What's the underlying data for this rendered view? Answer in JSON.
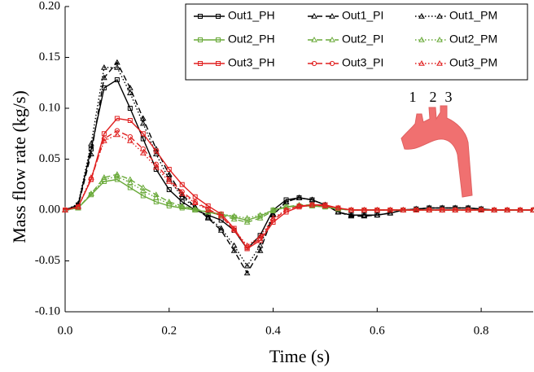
{
  "chart_data": {
    "type": "line",
    "xlabel": "Time (s)",
    "ylabel": "Mass flow rate (kg/s)",
    "annotations": [
      "1",
      "2",
      "3"
    ],
    "xlim": [
      0,
      0.9
    ],
    "ylim": [
      -0.1,
      0.2
    ],
    "xticks": [
      {
        "value": 0,
        "label": "0.0"
      },
      0.2,
      0.4,
      0.6,
      0.8
    ],
    "yticks": [
      {
        "value": -0.1,
        "label": "-0.10"
      },
      {
        "value": -0.05,
        "label": "-0.05"
      },
      {
        "value": 0,
        "label": "0.00"
      },
      0.05,
      {
        "value": 0.1,
        "label": "0.10"
      },
      0.15,
      {
        "value": 0.2,
        "label": "0.20"
      }
    ],
    "grid": false,
    "legend": "upper right",
    "x": [
      0,
      0.025,
      0.05,
      0.075,
      0.1,
      0.125,
      0.15,
      0.175,
      0.2,
      0.225,
      0.25,
      0.275,
      0.3,
      0.325,
      0.35,
      0.375,
      0.4,
      0.425,
      0.45,
      0.475,
      0.5,
      0.525,
      0.55,
      0.575,
      0.6,
      0.625,
      0.65,
      0.675,
      0.7,
      0.725,
      0.75,
      0.775,
      0.8,
      0.825,
      0.85,
      0.875,
      0.9
    ],
    "series": [
      {
        "name": "Out1_PH",
        "color": "#000000",
        "dash": "solid",
        "marker": "square",
        "values": [
          0,
          0.005,
          0.06,
          0.12,
          0.128,
          0.1,
          0.07,
          0.04,
          0.02,
          0.008,
          0,
          -0.005,
          -0.01,
          -0.02,
          -0.038,
          -0.025,
          0,
          0.01,
          0.012,
          0.01,
          0.005,
          -0.002,
          -0.005,
          -0.005,
          -0.005,
          -0.003,
          0,
          0.001,
          0.002,
          0.002,
          0.002,
          0.002,
          0.001,
          0,
          0,
          0,
          0
        ]
      },
      {
        "name": "Out1_PI",
        "color": "#000000",
        "dash": "dashed",
        "marker": "triangle",
        "values": [
          0,
          0.004,
          0.055,
          0.13,
          0.145,
          0.12,
          0.09,
          0.06,
          0.035,
          0.015,
          0.003,
          -0.008,
          -0.02,
          -0.04,
          -0.062,
          -0.04,
          -0.005,
          0.008,
          0.012,
          0.01,
          0.005,
          -0.002,
          -0.006,
          -0.006,
          -0.005,
          -0.003,
          0,
          0.001,
          0.002,
          0.002,
          0.002,
          0.002,
          0.001,
          0,
          0,
          0,
          0
        ]
      },
      {
        "name": "Out1_PM",
        "color": "#000000",
        "dash": "dotted",
        "marker": "triangle",
        "values": [
          0,
          0.006,
          0.065,
          0.14,
          0.14,
          0.115,
          0.085,
          0.055,
          0.03,
          0.013,
          0.002,
          -0.007,
          -0.018,
          -0.035,
          -0.055,
          -0.035,
          -0.004,
          0.008,
          0.012,
          0.01,
          0.005,
          -0.002,
          -0.005,
          -0.005,
          -0.005,
          -0.003,
          0,
          0.001,
          0.002,
          0.002,
          0.002,
          0.002,
          0.001,
          0,
          0,
          0,
          0
        ]
      },
      {
        "name": "Out2_PH",
        "color": "#6aaa3a",
        "dash": "solid",
        "marker": "square",
        "values": [
          0,
          0.002,
          0.015,
          0.028,
          0.03,
          0.022,
          0.014,
          0.008,
          0.004,
          0.002,
          0,
          -0.002,
          -0.004,
          -0.007,
          -0.01,
          -0.006,
          0,
          0.003,
          0.004,
          0.004,
          0.003,
          0.001,
          0,
          0,
          0,
          0,
          0,
          0,
          0,
          0,
          0,
          0,
          0,
          0,
          0,
          0,
          0
        ]
      },
      {
        "name": "Out2_PI",
        "color": "#6aaa3a",
        "dash": "dashed",
        "marker": "triangle",
        "values": [
          0,
          0.002,
          0.016,
          0.032,
          0.035,
          0.03,
          0.022,
          0.015,
          0.008,
          0.004,
          0.001,
          -0.002,
          -0.005,
          -0.009,
          -0.012,
          -0.008,
          -0.001,
          0.003,
          0.005,
          0.005,
          0.003,
          0.001,
          0,
          0,
          0,
          0,
          0,
          0,
          0,
          0,
          0,
          0,
          0,
          0,
          0,
          0,
          0
        ]
      },
      {
        "name": "Out2_PM",
        "color": "#6aaa3a",
        "dash": "dotted",
        "marker": "triangle",
        "values": [
          0,
          0.002,
          0.016,
          0.03,
          0.033,
          0.027,
          0.019,
          0.012,
          0.006,
          0.003,
          0,
          -0.002,
          -0.004,
          -0.006,
          -0.008,
          -0.005,
          0,
          0.003,
          0.004,
          0.004,
          0.003,
          0.001,
          0,
          0,
          0,
          0,
          0,
          0,
          0,
          0,
          0,
          0,
          0,
          0,
          0,
          0,
          0
        ]
      },
      {
        "name": "Out3_PH",
        "color": "#e02020",
        "dash": "solid",
        "marker": "square",
        "values": [
          0,
          0.003,
          0.03,
          0.075,
          0.09,
          0.088,
          0.075,
          0.058,
          0.04,
          0.025,
          0.013,
          0.004,
          -0.004,
          -0.018,
          -0.038,
          -0.03,
          -0.012,
          -0.002,
          0.003,
          0.005,
          0.005,
          0.002,
          0,
          0,
          0,
          0,
          0,
          0,
          0,
          0,
          0,
          0,
          0,
          0,
          0,
          0,
          0
        ]
      },
      {
        "name": "Out3_PI",
        "color": "#e02020",
        "dash": "dashed",
        "marker": "circle",
        "values": [
          0,
          0.003,
          0.03,
          0.07,
          0.078,
          0.072,
          0.06,
          0.045,
          0.03,
          0.018,
          0.008,
          0.001,
          -0.006,
          -0.02,
          -0.037,
          -0.028,
          -0.01,
          0,
          0.004,
          0.005,
          0.004,
          0.002,
          0,
          0,
          0,
          0,
          0,
          0,
          0,
          0,
          0,
          0,
          0,
          0,
          0,
          0,
          0
        ]
      },
      {
        "name": "Out3_PM",
        "color": "#e02020",
        "dash": "dotted",
        "marker": "triangle",
        "values": [
          0,
          0.003,
          0.032,
          0.068,
          0.074,
          0.068,
          0.056,
          0.042,
          0.028,
          0.016,
          0.007,
          0,
          -0.006,
          -0.019,
          -0.035,
          -0.026,
          -0.008,
          0,
          0.004,
          0.005,
          0.004,
          0.002,
          0,
          0,
          0,
          0,
          0,
          0,
          0,
          0,
          0,
          0,
          0,
          0,
          0,
          0,
          0
        ]
      }
    ]
  }
}
